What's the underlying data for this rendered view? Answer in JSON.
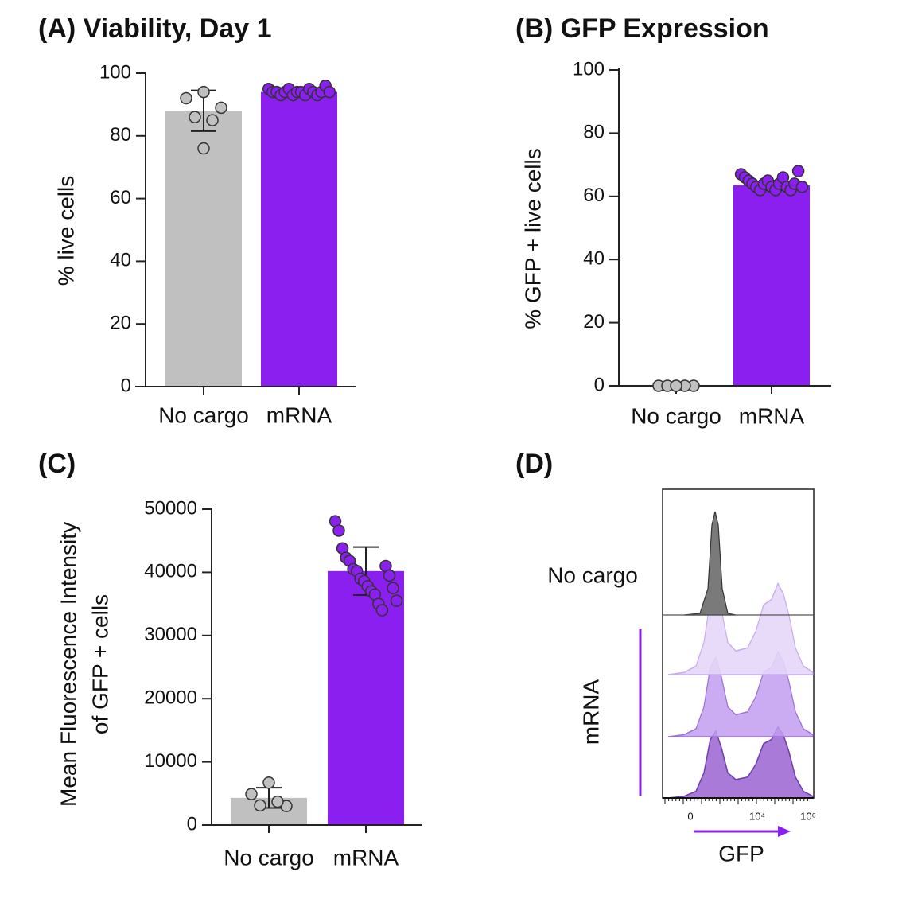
{
  "chart_data": [
    {
      "type": "bar",
      "title": "(A) Viability, Day 1",
      "ylabel": "% live cells",
      "categories": [
        "No cargo",
        "mRNA"
      ],
      "values": [
        88,
        94
      ],
      "errors": [
        6.5,
        1
      ],
      "points": [
        [
          94,
          92,
          89,
          86,
          85,
          76
        ],
        [
          95,
          94,
          94,
          93,
          94,
          95,
          93,
          94,
          94,
          93,
          95,
          94,
          93,
          94,
          96,
          94
        ]
      ],
      "colors": [
        "#c0c0c0",
        "#8a1ff0"
      ],
      "ylim": [
        0,
        100
      ],
      "yticks": [
        0,
        20,
        40,
        60,
        80,
        100
      ]
    },
    {
      "type": "bar",
      "title": "(B) GFP Expression",
      "ylabel": "% GFP + live cells",
      "categories": [
        "No cargo",
        "mRNA"
      ],
      "values": [
        0,
        63.5
      ],
      "errors": [
        0,
        1.5
      ],
      "points": [
        [
          0,
          0,
          0,
          0,
          0,
          0
        ],
        [
          67,
          66,
          65,
          64,
          63,
          62,
          64,
          65,
          63,
          62,
          64,
          66,
          63,
          62,
          64,
          68,
          63
        ]
      ],
      "colors": [
        "#c0c0c0",
        "#8a1ff0"
      ],
      "ylim": [
        0,
        100
      ],
      "yticks": [
        0,
        20,
        40,
        60,
        80,
        100
      ]
    },
    {
      "type": "bar",
      "title": "(C)",
      "ylabel": [
        "Mean Fluorescence Intensity",
        "of GFP + cells"
      ],
      "categories": [
        "No cargo",
        "mRNA"
      ],
      "values": [
        4300,
        40200
      ],
      "errors": [
        1600,
        3800
      ],
      "points": [
        [
          6700,
          4900,
          3000,
          3100,
          3700
        ],
        [
          48100,
          46600,
          43800,
          42300,
          41800,
          40500,
          40200,
          39000,
          38600,
          37800,
          37000,
          36500,
          35000,
          34000,
          41000,
          39500,
          37500,
          35500
        ]
      ],
      "colors": [
        "#c0c0c0",
        "#8a1ff0"
      ],
      "ylim": [
        0,
        50000
      ],
      "yticks": [
        0,
        10000,
        20000,
        30000,
        40000,
        50000
      ]
    },
    {
      "type": "flow-histogram",
      "title": "(D)",
      "row_labels": [
        "No cargo",
        "mRNA"
      ],
      "xlabel": "GFP",
      "xtick_labels": [
        "0",
        "10⁴",
        "10⁶"
      ]
    }
  ]
}
